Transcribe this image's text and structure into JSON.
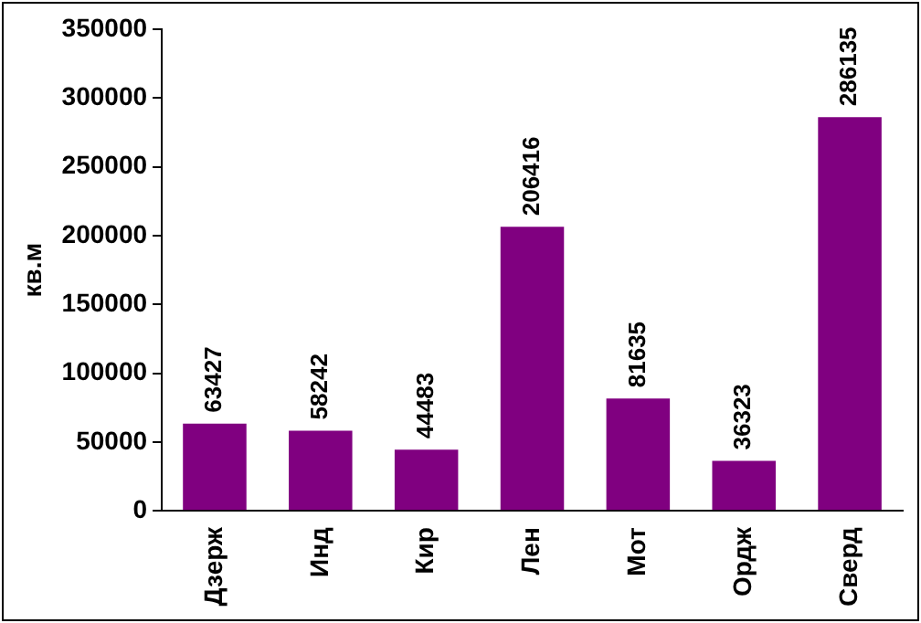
{
  "chart_data": {
    "type": "bar",
    "ylabel": "кв.м",
    "categories": [
      "Дзерж",
      "Инд",
      "Кир",
      "Лен",
      "Мот",
      "Ордж",
      "Сверд"
    ],
    "values": [
      63427,
      58242,
      44483,
      206416,
      81635,
      36323,
      286135
    ],
    "color": "#800080",
    "ylim": [
      0,
      350000
    ],
    "yticks": [
      0,
      50000,
      100000,
      150000,
      200000,
      250000,
      300000,
      350000
    ],
    "grid": false,
    "legend": false,
    "data_labels": true
  }
}
